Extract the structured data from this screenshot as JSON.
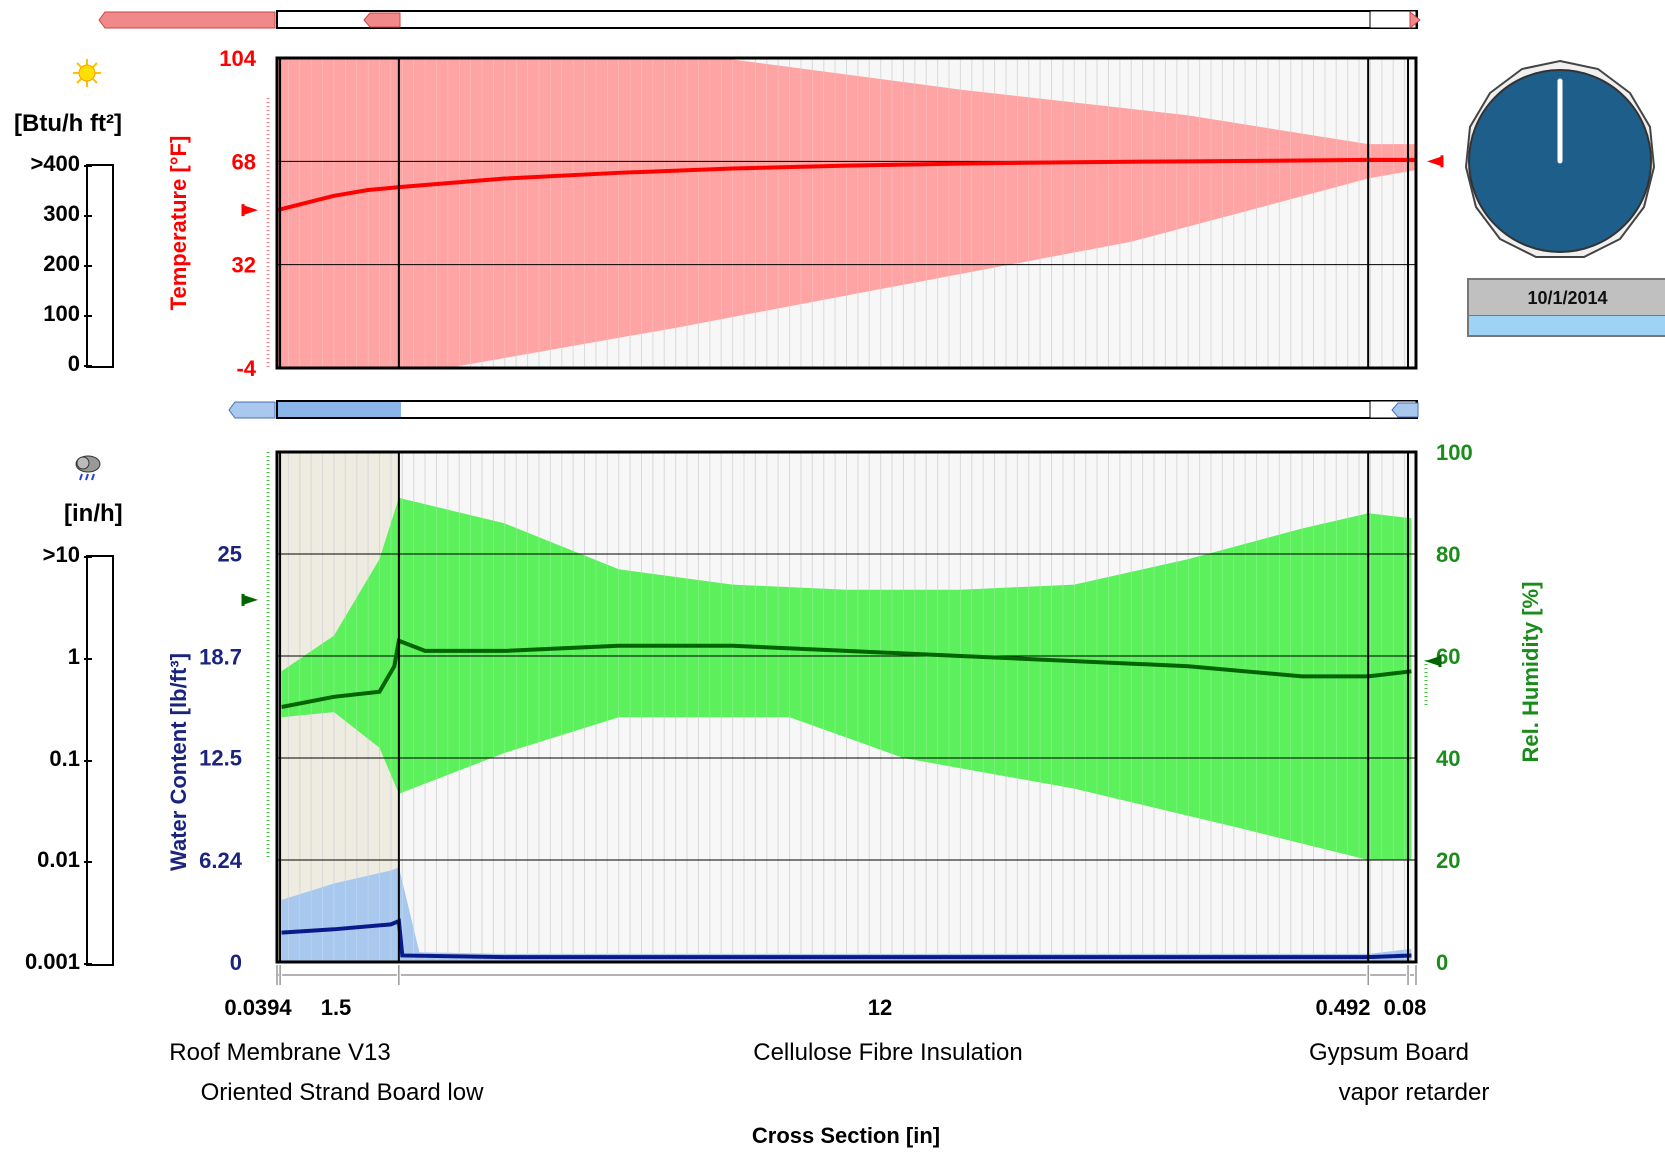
{
  "left_panel": {
    "radiation_unit": "[Btu/h ft²]",
    "radiation_ticks": [
      ">400",
      "300",
      "200",
      "100",
      "0"
    ],
    "rain_unit": "[in/h]",
    "rain_ticks": [
      ">10",
      "1",
      "0.1",
      "0.01",
      "0.001"
    ]
  },
  "clock": {
    "hand_angle_deg": 0
  },
  "date_panel": {
    "date": "10/1/2014",
    "progress": 1.0
  },
  "colors": {
    "temperature": "#ff0000",
    "temperature_band": "#ff9a9a",
    "humidity": "#006400",
    "humidity_band": "#5cf05c",
    "water_content": "#0a1a8a",
    "water_band": "#a8c8ee",
    "background_grid": "#d0d0d0"
  },
  "chart_data": [
    {
      "type": "line",
      "title": "",
      "ylabel": "Temperature [°F]",
      "y_ticks": [
        "104",
        "68",
        "32",
        "-4"
      ],
      "ylim": [
        -4,
        104
      ],
      "x_normalized_range": [
        0,
        1
      ],
      "series": [
        {
          "name": "Temperature [°F]",
          "x": [
            0,
            0.02,
            0.05,
            0.08,
            0.107,
            0.2,
            0.3,
            0.4,
            0.5,
            0.6,
            0.7,
            0.8,
            0.9,
            0.958,
            1.0
          ],
          "values": [
            51,
            53,
            56,
            58,
            59,
            62,
            64,
            65.5,
            66.5,
            67.2,
            67.7,
            68,
            68.3,
            68.5,
            68.5
          ]
        },
        {
          "name": "Temperature max",
          "x": [
            0,
            0.39,
            0.6,
            0.8,
            0.958,
            1.0
          ],
          "values": [
            104,
            104,
            93,
            84,
            74,
            74
          ]
        },
        {
          "name": "Temperature min",
          "x": [
            0,
            0.15,
            0.35,
            0.55,
            0.75,
            0.958,
            1.0
          ],
          "values": [
            -4,
            -4,
            10,
            25,
            40,
            62,
            65
          ]
        }
      ],
      "boundary_markers": {
        "outside": 51,
        "inside": 68
      }
    },
    {
      "type": "line",
      "title": "",
      "xlabel": "Cross Section [in]",
      "ylabel": "Water Content [lb/ft³]",
      "ylabel_right": "Rel. Humidity [%]",
      "y_ticks": [
        "25",
        "18.7",
        "12.5",
        "6.24",
        "0"
      ],
      "y_ticks_right": [
        "100",
        "80",
        "60",
        "40",
        "20",
        "0"
      ],
      "ylim_left": [
        0,
        31.2
      ],
      "ylim_right": [
        0,
        100
      ],
      "layer_thickness_labels": [
        "0.0394",
        "1.5",
        "12",
        "0.492",
        "0.08"
      ],
      "layers_top": [
        "Roof Membrane V13",
        "Cellulose Fibre Insulation",
        "Gypsum Board"
      ],
      "layers_bottom": [
        "Oriented Strand Board low",
        "vapor retarder"
      ],
      "series": [
        {
          "name": "Rel. Humidity [%]",
          "x": [
            0.004,
            0.05,
            0.09,
            0.103,
            0.107,
            0.13,
            0.2,
            0.3,
            0.4,
            0.5,
            0.6,
            0.7,
            0.8,
            0.9,
            0.958,
            0.996
          ],
          "values": [
            50,
            52,
            53,
            58,
            63,
            61,
            61,
            62,
            62,
            61,
            60,
            59,
            58,
            56,
            56,
            57
          ]
        },
        {
          "name": "Rel. Humidity max",
          "x": [
            0.004,
            0.05,
            0.09,
            0.107,
            0.2,
            0.3,
            0.4,
            0.5,
            0.6,
            0.7,
            0.8,
            0.9,
            0.958,
            0.996
          ],
          "values": [
            57,
            64,
            79,
            91,
            86,
            77,
            74,
            73,
            73,
            74,
            79,
            85,
            88,
            87
          ]
        },
        {
          "name": "Rel. Humidity min",
          "x": [
            0.004,
            0.05,
            0.09,
            0.107,
            0.2,
            0.3,
            0.45,
            0.55,
            0.7,
            0.85,
            0.958,
            0.996
          ],
          "values": [
            48,
            49,
            42,
            33,
            41,
            48,
            48,
            40,
            34,
            26,
            20,
            20
          ]
        },
        {
          "name": "Water Content [lb/ft³]",
          "x": [
            0.004,
            0.05,
            0.1,
            0.107,
            0.11,
            0.2,
            0.5,
            0.8,
            0.958,
            0.996
          ],
          "values": [
            1.8,
            2.0,
            2.3,
            2.5,
            0.4,
            0.3,
            0.3,
            0.3,
            0.3,
            0.4
          ]
        },
        {
          "name": "Water Content max",
          "x": [
            0.004,
            0.05,
            0.1,
            0.107,
            0.125,
            0.2,
            0.958,
            0.996
          ],
          "values": [
            3.8,
            4.8,
            5.6,
            5.8,
            0.6,
            0.5,
            0.5,
            0.8
          ]
        }
      ],
      "boundary_markers": {
        "rh_outside": 71,
        "rh_inside": 59
      }
    }
  ],
  "layer_boundaries": [
    0.0,
    0.0027,
    0.107,
    0.958,
    0.993,
    1.0
  ]
}
